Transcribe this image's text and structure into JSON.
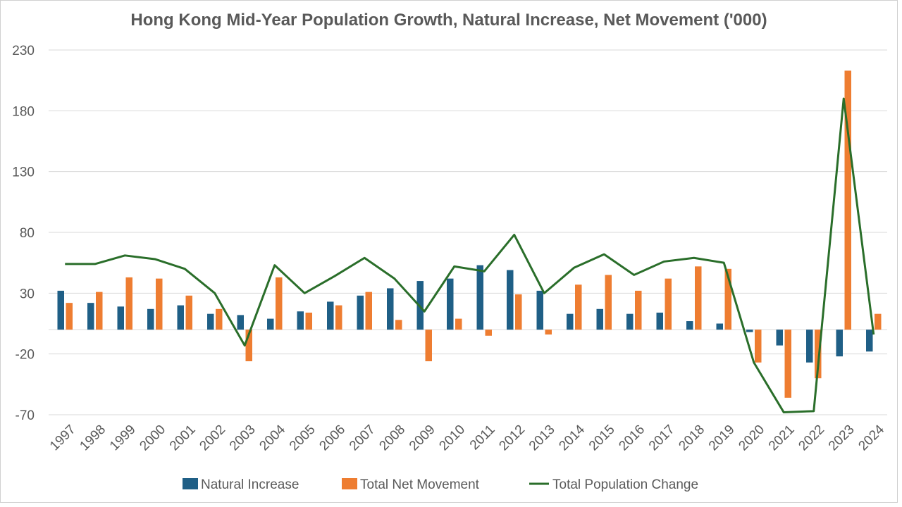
{
  "chart_data": {
    "type": "bar",
    "title": "Hong Kong Mid-Year Population Growth, Natural Increase, Net Movement ('000)",
    "xlabel": "",
    "ylabel": "",
    "ylim": [
      -70,
      230
    ],
    "yticks": [
      230,
      180,
      130,
      80,
      30,
      -20,
      -70
    ],
    "grid": true,
    "legend_position": "bottom",
    "categories": [
      "1997",
      "1998",
      "1999",
      "2000",
      "2001",
      "2002",
      "2003",
      "2004",
      "2005",
      "2006",
      "2007",
      "2008",
      "2009",
      "2010",
      "2011",
      "2012",
      "2013",
      "2014",
      "2015",
      "2016",
      "2017",
      "2018",
      "2019",
      "2020",
      "2021",
      "2022",
      "2023",
      "2024"
    ],
    "series": [
      {
        "name": "Natural Increase",
        "kind": "bar",
        "color": "#1f5f86",
        "values": [
          32,
          22,
          19,
          17,
          20,
          13,
          12,
          9,
          15,
          23,
          28,
          34,
          40,
          42,
          53,
          49,
          32,
          13,
          17,
          13,
          14,
          7,
          5,
          -2,
          -13,
          -27,
          -22,
          -18
        ]
      },
      {
        "name": "Total Net Movement",
        "kind": "bar",
        "color": "#ee7d31",
        "values": [
          22,
          31,
          43,
          42,
          28,
          17,
          -26,
          43,
          14,
          20,
          31,
          8,
          -26,
          9,
          -5,
          29,
          -4,
          37,
          45,
          32,
          42,
          52,
          50,
          -27,
          -56,
          -40,
          213,
          13
        ]
      },
      {
        "name": "Total Population Change",
        "kind": "line",
        "color": "#2a6e2a",
        "values": [
          54,
          54,
          61,
          58,
          50,
          30,
          -13,
          53,
          30,
          44,
          59,
          42,
          15,
          52,
          48,
          78,
          30,
          51,
          62,
          45,
          56,
          59,
          55,
          -27,
          -68,
          -67,
          190,
          -4
        ]
      }
    ]
  }
}
